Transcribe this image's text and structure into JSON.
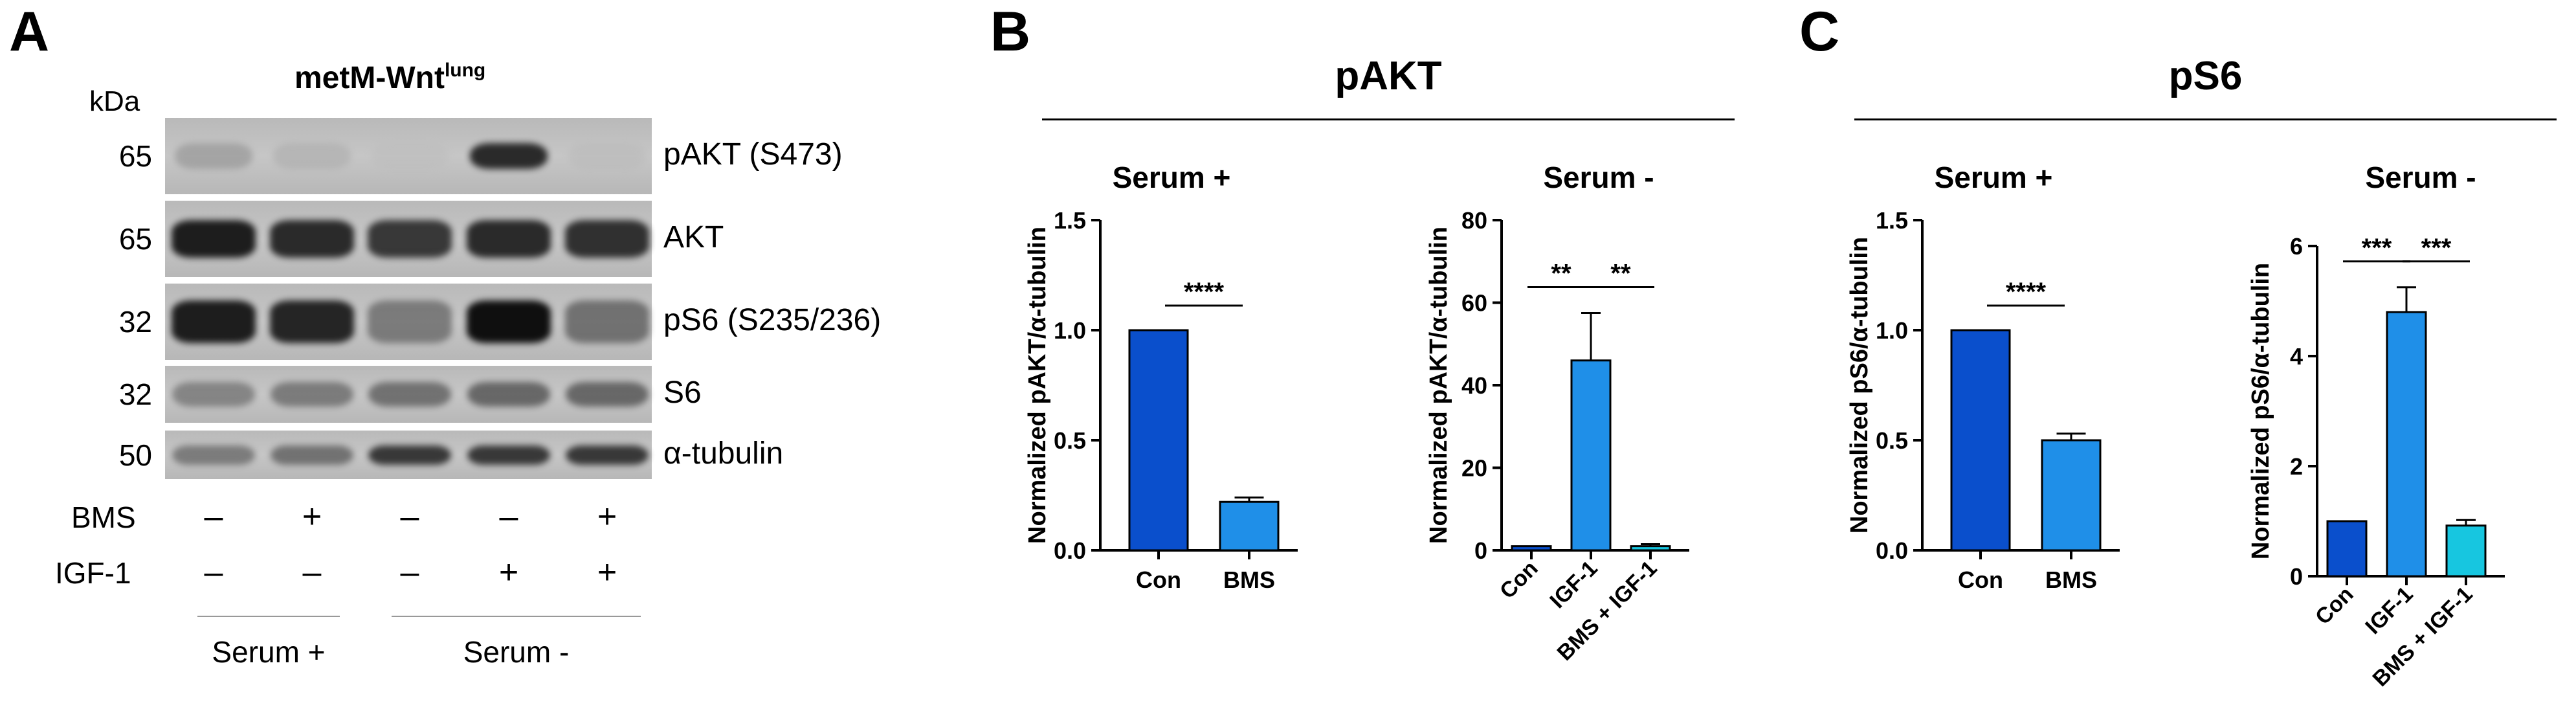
{
  "panels": {
    "a": "A",
    "b": "B",
    "c": "C"
  },
  "blot": {
    "title_main": "metM-Wnt",
    "title_sup": "lung",
    "kda_label": "kDa",
    "lanes_n": 5,
    "bands": [
      {
        "mw": "65",
        "label": "pAKT (S473)",
        "intensity": [
          0.3,
          0.15,
          0.03,
          0.9,
          0.05
        ]
      },
      {
        "mw": "65",
        "label": "AKT",
        "intensity": [
          0.95,
          0.9,
          0.85,
          0.9,
          0.88
        ]
      },
      {
        "mw": "32",
        "label": "pS6 (S235/236)",
        "intensity": [
          0.95,
          0.92,
          0.55,
          1.0,
          0.6
        ]
      },
      {
        "mw": "32",
        "label": "S6",
        "intensity": [
          0.5,
          0.55,
          0.6,
          0.65,
          0.65
        ]
      },
      {
        "mw": "50",
        "label": "α-tubulin",
        "intensity": [
          0.55,
          0.6,
          0.85,
          0.85,
          0.85
        ]
      }
    ],
    "treatments": [
      {
        "label": "BMS",
        "values": [
          "–",
          "+",
          "–",
          "–",
          "+"
        ]
      },
      {
        "label": "IGF-1",
        "values": [
          "–",
          "–",
          "–",
          "+",
          "+"
        ]
      }
    ],
    "groups": [
      {
        "label": "Serum +"
      },
      {
        "label": "Serum -"
      }
    ]
  },
  "sections": {
    "b_title": "pAKT",
    "c_title": "pS6"
  },
  "chart_data": [
    {
      "type": "bar",
      "title": "Serum +",
      "ylabel": "Normalized pAKT/α-tubulin",
      "categories": [
        "Con",
        "BMS"
      ],
      "values": [
        1.0,
        0.22
      ],
      "errors": [
        0,
        0.02
      ],
      "ylim": [
        0,
        1.5
      ],
      "yticks": [
        "0.0",
        "0.5",
        "1.0",
        "1.5"
      ],
      "colors": [
        "#0a4fcc",
        "#1f8fe8"
      ],
      "significance": [
        {
          "from": 0,
          "to": 1,
          "label": "****"
        }
      ],
      "rotate_x": false
    },
    {
      "type": "bar",
      "title": "Serum -",
      "ylabel": "Normalized pAKT/α-tubulin",
      "categories": [
        "Con",
        "IGF-1",
        "BMS + IGF-1"
      ],
      "values": [
        1,
        46,
        1
      ],
      "errors": [
        0,
        11.5,
        0.5
      ],
      "ylim": [
        0,
        80
      ],
      "yticks": [
        "0",
        "20",
        "40",
        "60",
        "80"
      ],
      "colors": [
        "#0a4fcc",
        "#1f8fe8",
        "#17c6e0"
      ],
      "significance": [
        {
          "from": 0,
          "to": 1,
          "label": "**"
        },
        {
          "from": 1,
          "to": 2,
          "label": "**"
        }
      ],
      "rotate_x": true
    },
    {
      "type": "bar",
      "title": "Serum +",
      "ylabel": "Normalized pS6/α-tubulin",
      "categories": [
        "Con",
        "BMS"
      ],
      "values": [
        1.0,
        0.5
      ],
      "errors": [
        0,
        0.03
      ],
      "ylim": [
        0,
        1.5
      ],
      "yticks": [
        "0.0",
        "0.5",
        "1.0",
        "1.5"
      ],
      "colors": [
        "#0a4fcc",
        "#1f8fe8"
      ],
      "significance": [
        {
          "from": 0,
          "to": 1,
          "label": "****"
        }
      ],
      "rotate_x": false
    },
    {
      "type": "bar",
      "title": "Serum -",
      "ylabel": "Normalized pS6/α-tubulin",
      "categories": [
        "Con",
        "IGF-1",
        "BMS + IGF-1"
      ],
      "values": [
        1.0,
        4.8,
        0.92
      ],
      "errors": [
        0,
        0.45,
        0.1
      ],
      "ylim": [
        0,
        6
      ],
      "yticks": [
        "0",
        "2",
        "4",
        "6"
      ],
      "colors": [
        "#0a4fcc",
        "#1f8fe8",
        "#17c6e0"
      ],
      "significance": [
        {
          "from": 0,
          "to": 1,
          "label": "***"
        },
        {
          "from": 1,
          "to": 2,
          "label": "***"
        }
      ],
      "rotate_x": true
    }
  ]
}
